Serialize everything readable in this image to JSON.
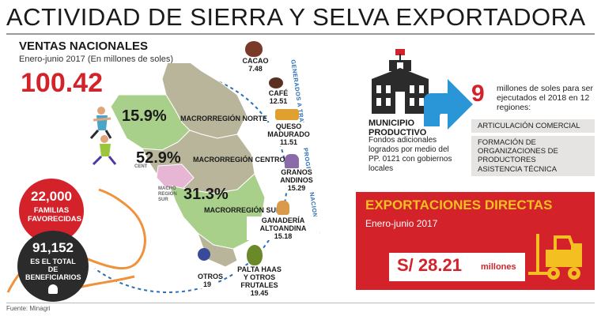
{
  "title": "ACTIVIDAD DE SIERRA Y SELVA EXPORTADORA",
  "ventas": {
    "title": "VENTAS NACIONALES",
    "subtitle": "Enero-junio 2017  (En millones de soles)",
    "total": "100.42"
  },
  "map": {
    "regions": [
      {
        "pct": "15.9%",
        "label": "MACRORREGIÓN NORTE"
      },
      {
        "pct": "52.9%",
        "label": "MACRORREGIÓN CENTRO"
      },
      {
        "pct": "31.3%",
        "label": "MACRORREGIÓN SUR"
      }
    ],
    "small_labels": {
      "centro": "CENT",
      "sur": "MACRO REGIÓN SUR"
    },
    "arc_text": "GENERADOS A TRAVÉS DE PROGRAMAS NACIONALES"
  },
  "products": [
    {
      "name": "CACAO",
      "value": "7.48",
      "icon": "cacao-icon"
    },
    {
      "name": "CAFÉ",
      "value": "12.51",
      "icon": "coffee-icon"
    },
    {
      "name": "QUESO MADURADO",
      "value": "11.51",
      "icon": "cheese-icon"
    },
    {
      "name": "GRANOS ANDINOS",
      "value": "15.29",
      "icon": "grain-icon"
    },
    {
      "name": "GANADERÍA ALTOANDINA",
      "value": "15.18",
      "icon": "alpaca-icon"
    },
    {
      "name": "PALTA HAAS Y OTROS FRUTALES",
      "value": "19.45",
      "icon": "avocado-icon"
    },
    {
      "name": "OTROS",
      "value": "19",
      "icon": "blueberry-icon"
    }
  ],
  "familias": {
    "number": "22,000",
    "label": "FAMILIAS FAVORECIDAS"
  },
  "beneficiarios": {
    "number": "91,152",
    "label": "ES EL TOTAL DE BENEFICIARIOS"
  },
  "municipio": {
    "title_line1": "MUNICIPIO",
    "title_line2": "PRODUCTIVO",
    "description": "Fondos adicionales logrados por medio del PP. 0121 con gobiernos locales"
  },
  "programa": {
    "number": "9",
    "text": "millones de soles para ser ejecutados el 2018 en 12 regiones:",
    "items": [
      "ARTICULACIÓN COMERCIAL",
      "FORMACIÓN DE ORGANIZACIONES DE PRODUCTORES",
      "ASISTENCIA TÉCNICA"
    ]
  },
  "exportaciones": {
    "title": "EXPORTACIONES DIRECTAS",
    "subtitle": "Enero-junio 2017",
    "amount": "S/ 28.21",
    "unit": "millones"
  },
  "source": "Fuente: Minagri",
  "colors": {
    "accent_red": "#d4222a",
    "accent_yellow": "#f4c021",
    "arrow_blue": "#2a96d8",
    "map_gray": "#b9b59a",
    "map_green": "#a9d08a",
    "map_pink": "#e6b6d4"
  }
}
